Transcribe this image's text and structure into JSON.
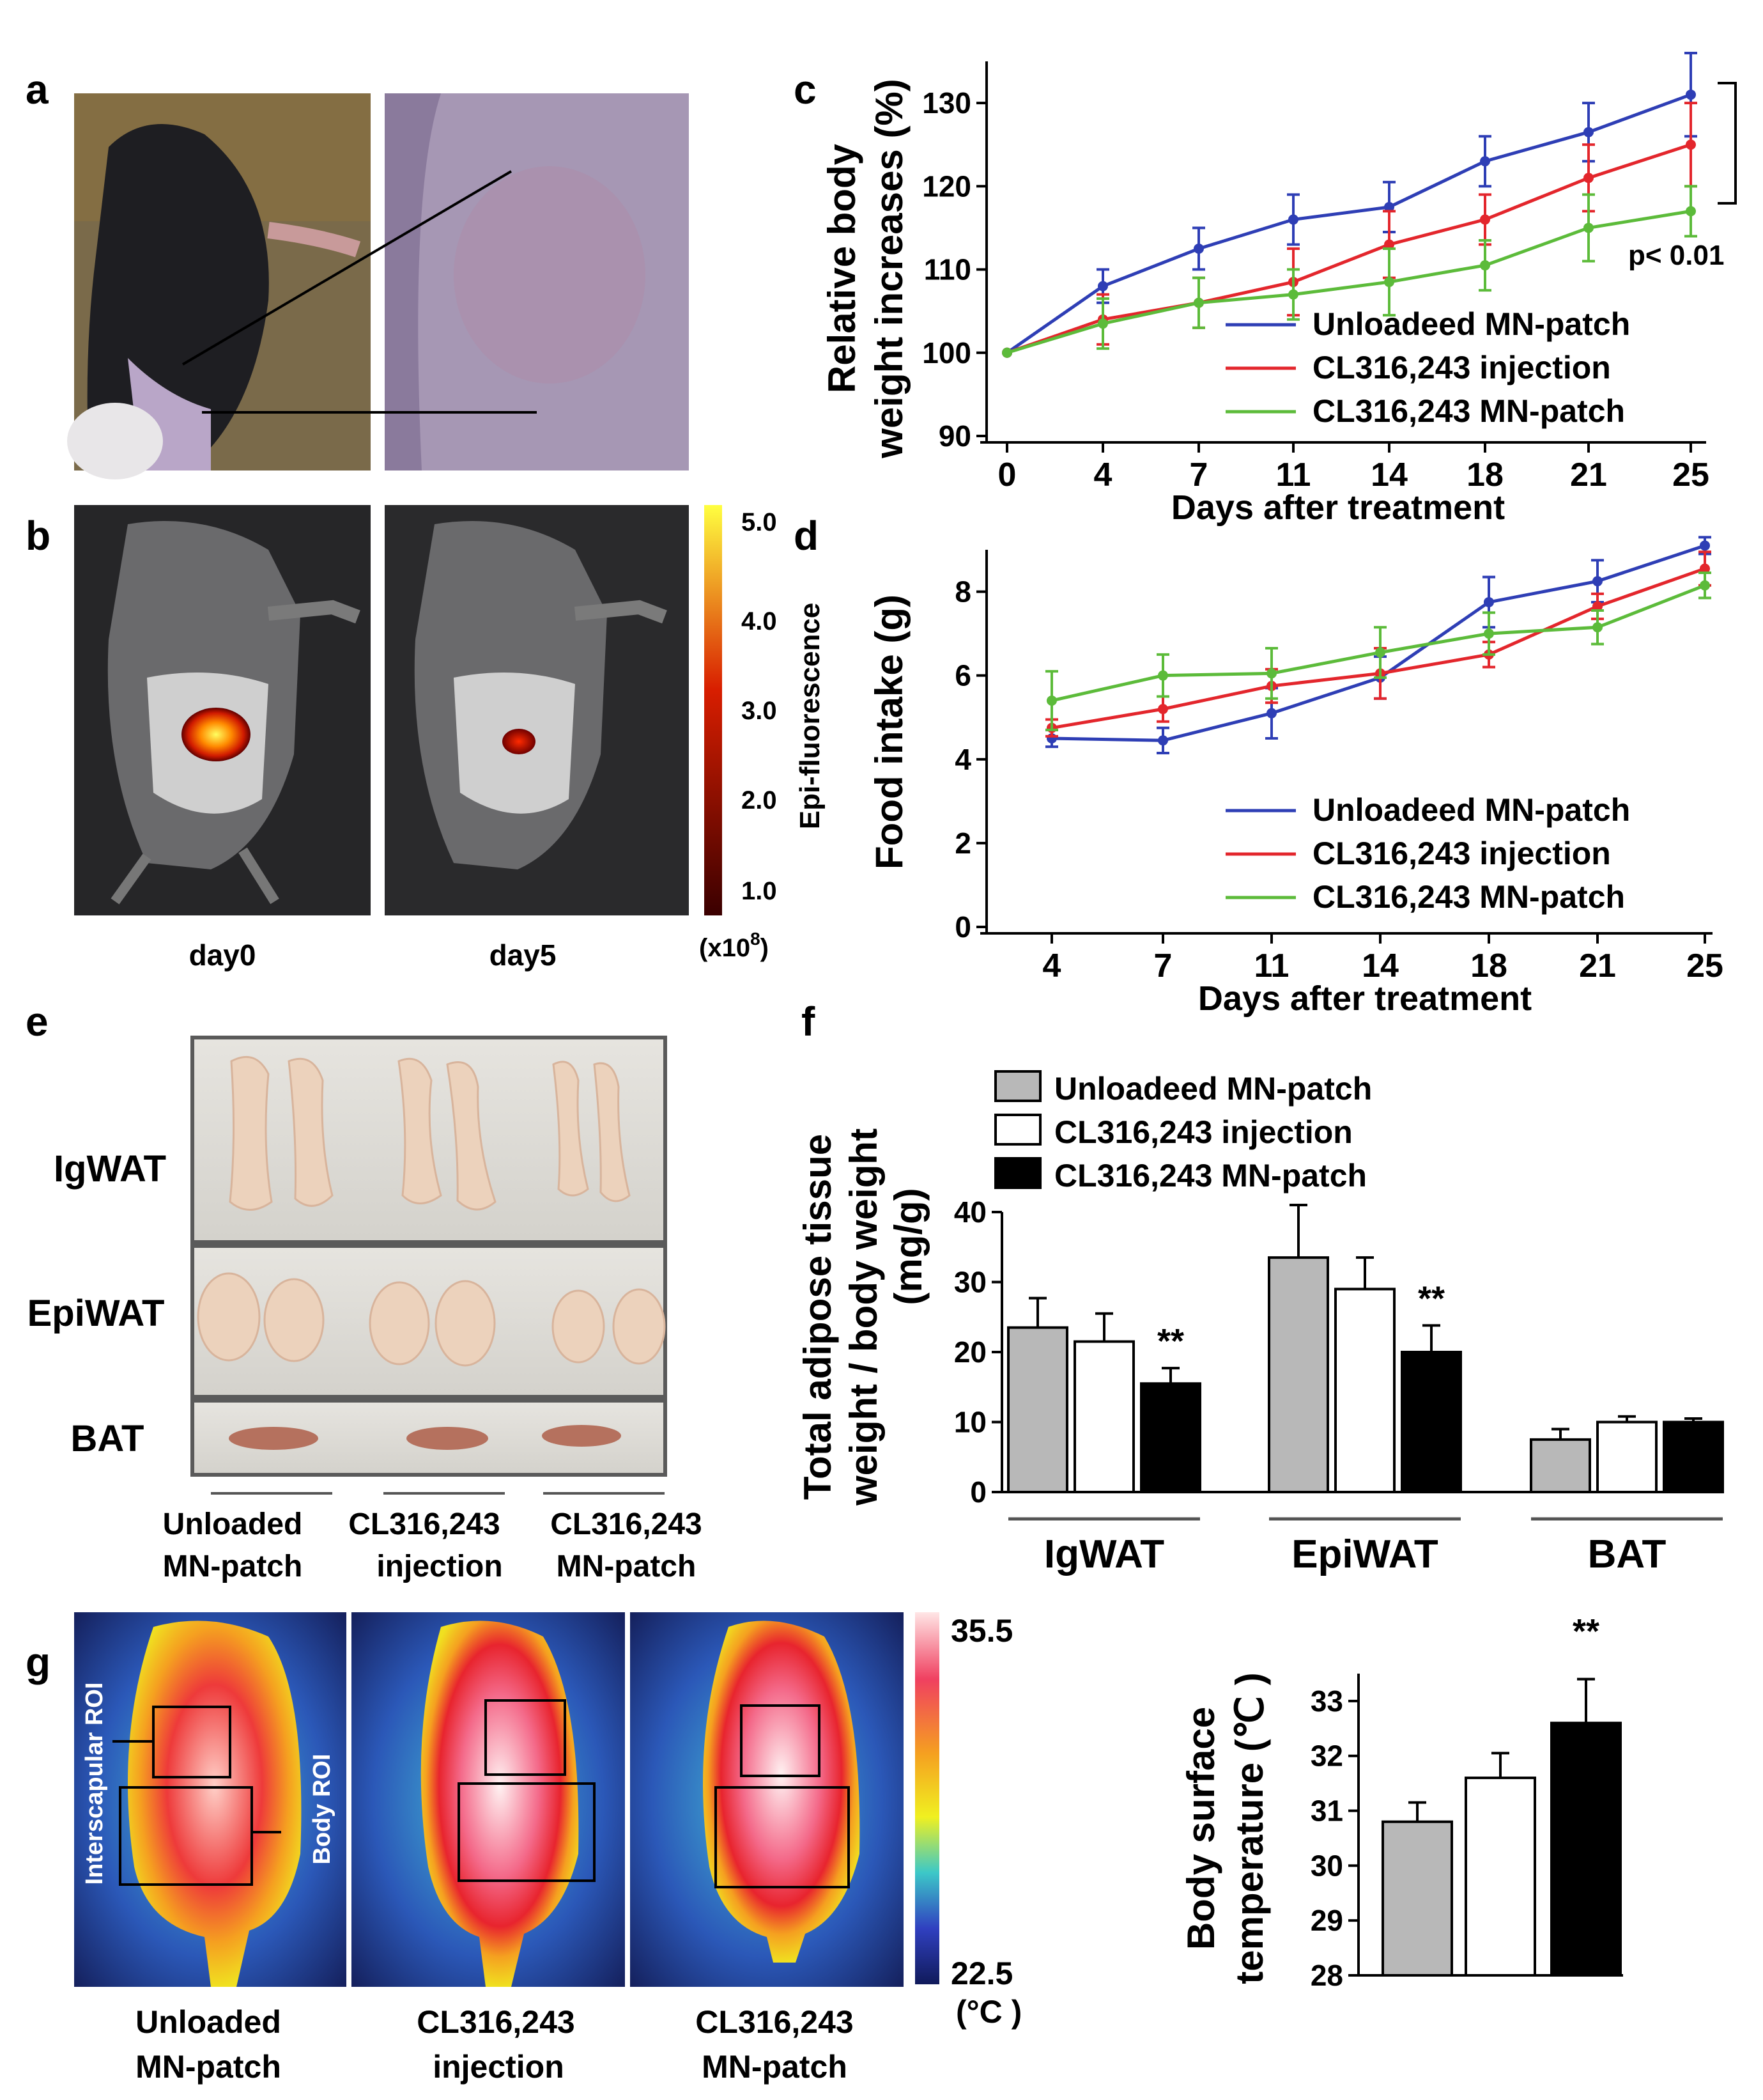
{
  "panels": {
    "a": {
      "label": "a"
    },
    "b": {
      "label": "b",
      "day_labels": [
        "day0",
        "day5"
      ],
      "colorbar": {
        "title": "Epi-fluorescence",
        "ticks": [
          "5.0",
          "4.0",
          "3.0",
          "2.0",
          "1.0"
        ],
        "unit": "(x10",
        "unit_exp": "8",
        "unit_close": ")",
        "top_color": "#ffff40",
        "mid_color": "#d81e00",
        "bottom_color": "#3a0000"
      }
    },
    "c": {
      "label": "c"
    },
    "d": {
      "label": "d"
    },
    "e": {
      "label": "e",
      "row_labels": [
        "IgWAT",
        "EpiWAT",
        "BAT"
      ],
      "group_labels": [
        [
          "Unloaded",
          "MN-patch"
        ],
        [
          "CL316,243",
          "injection"
        ],
        [
          "CL316,243",
          "MN-patch"
        ]
      ]
    },
    "f": {
      "label": "f"
    },
    "g": {
      "label": "g",
      "roi_labels": [
        "Interscapular ROI",
        "Body ROI"
      ],
      "group_labels": [
        [
          "Unloaded",
          "MN-patch"
        ],
        [
          "CL316,243",
          "injection"
        ],
        [
          "CL316,243",
          "MN-patch"
        ]
      ],
      "colorbar": {
        "max": "35.5",
        "min": "22.5",
        "unit": "(°C )"
      }
    }
  },
  "colors": {
    "unloaded": "#2e3eb5",
    "injection": "#e3262c",
    "mn_patch": "#5cbb3a",
    "bar_gray": "#b8b8b8",
    "bar_white": "#ffffff",
    "bar_black": "#000000"
  },
  "chart_data": [
    {
      "id": "c",
      "type": "line",
      "xlabel": "Days after treatment",
      "ylabel": [
        "Relative body",
        "weight increases (%)"
      ],
      "x": [
        0,
        4,
        7,
        11,
        14,
        18,
        21,
        25
      ],
      "ylim": [
        90,
        135
      ],
      "yticks": [
        90,
        100,
        110,
        120,
        130
      ],
      "series": [
        {
          "name": "Unloadeed MN-patch",
          "values": [
            100,
            108,
            112.5,
            116,
            117.5,
            123,
            126.5,
            131
          ],
          "errors": [
            0,
            2,
            2.5,
            3,
            3,
            3,
            3.5,
            5
          ]
        },
        {
          "name": "CL316,243 injection",
          "values": [
            100,
            104,
            106,
            108.5,
            113,
            116,
            121,
            125
          ],
          "errors": [
            0,
            3,
            3,
            4,
            4,
            3,
            4,
            5
          ]
        },
        {
          "name": "CL316,243 MN-patch",
          "values": [
            100,
            103.5,
            106,
            107,
            108.5,
            110.5,
            115,
            117
          ],
          "errors": [
            0,
            3,
            3,
            3,
            4,
            3,
            4,
            3
          ]
        }
      ],
      "annotation": "p< 0.01"
    },
    {
      "id": "d",
      "type": "line",
      "xlabel": "Days after treatment",
      "ylabel": "Food intake (g)",
      "x": [
        4,
        7,
        11,
        14,
        18,
        21,
        25
      ],
      "ylim": [
        0,
        9
      ],
      "yticks": [
        0,
        2,
        4,
        6,
        8
      ],
      "series": [
        {
          "name": "Unloadeed MN-patch",
          "values": [
            4.5,
            4.45,
            5.1,
            5.95,
            7.75,
            8.25,
            9.1
          ],
          "errors": [
            0.2,
            0.3,
            0.6,
            0.5,
            0.6,
            0.5,
            0.2
          ]
        },
        {
          "name": "CL316,243 injection",
          "values": [
            4.75,
            5.2,
            5.75,
            6.05,
            6.5,
            7.65,
            8.55
          ],
          "errors": [
            0.2,
            0.3,
            0.4,
            0.6,
            0.3,
            0.3,
            0.4
          ]
        },
        {
          "name": "CL316,243 MN-patch",
          "values": [
            5.4,
            6.0,
            6.05,
            6.55,
            7.0,
            7.15,
            8.15
          ],
          "errors": [
            0.7,
            0.5,
            0.6,
            0.6,
            0.5,
            0.4,
            0.3
          ]
        }
      ]
    },
    {
      "id": "f",
      "type": "bar",
      "ylabel": [
        "Total adipose tissue",
        "weight / body weight",
        "(mg/g)"
      ],
      "categories": [
        "IgWAT",
        "EpiWAT",
        "BAT"
      ],
      "ylim": [
        0,
        40
      ],
      "yticks": [
        0,
        10,
        20,
        30,
        40
      ],
      "series": [
        {
          "name": "Unloadeed MN-patch",
          "values": [
            23.5,
            33.5,
            7.5
          ],
          "errors": [
            4.2,
            7.5,
            1.5
          ]
        },
        {
          "name": "CL316,243 injection",
          "values": [
            21.5,
            29.0,
            10.0
          ],
          "errors": [
            4.0,
            4.5,
            0.8
          ]
        },
        {
          "name": "CL316,243 MN-patch",
          "values": [
            15.5,
            20.0,
            10.0
          ],
          "errors": [
            2.2,
            3.8,
            0.5
          ]
        }
      ],
      "significance": [
        "**",
        "**",
        ""
      ]
    },
    {
      "id": "g",
      "type": "bar",
      "ylabel": [
        "Body surface",
        "temperature (℃ )"
      ],
      "categories": [
        "Unloaded MN-patch",
        "CL316,243 injection",
        "CL316,243 MN-patch"
      ],
      "values": [
        30.8,
        31.6,
        32.6
      ],
      "errors": [
        0.35,
        0.45,
        0.8
      ],
      "ylim": [
        28,
        33.5
      ],
      "yticks": [
        28,
        29,
        30,
        31,
        32,
        33
      ],
      "significance": [
        "",
        "",
        "**"
      ]
    }
  ]
}
